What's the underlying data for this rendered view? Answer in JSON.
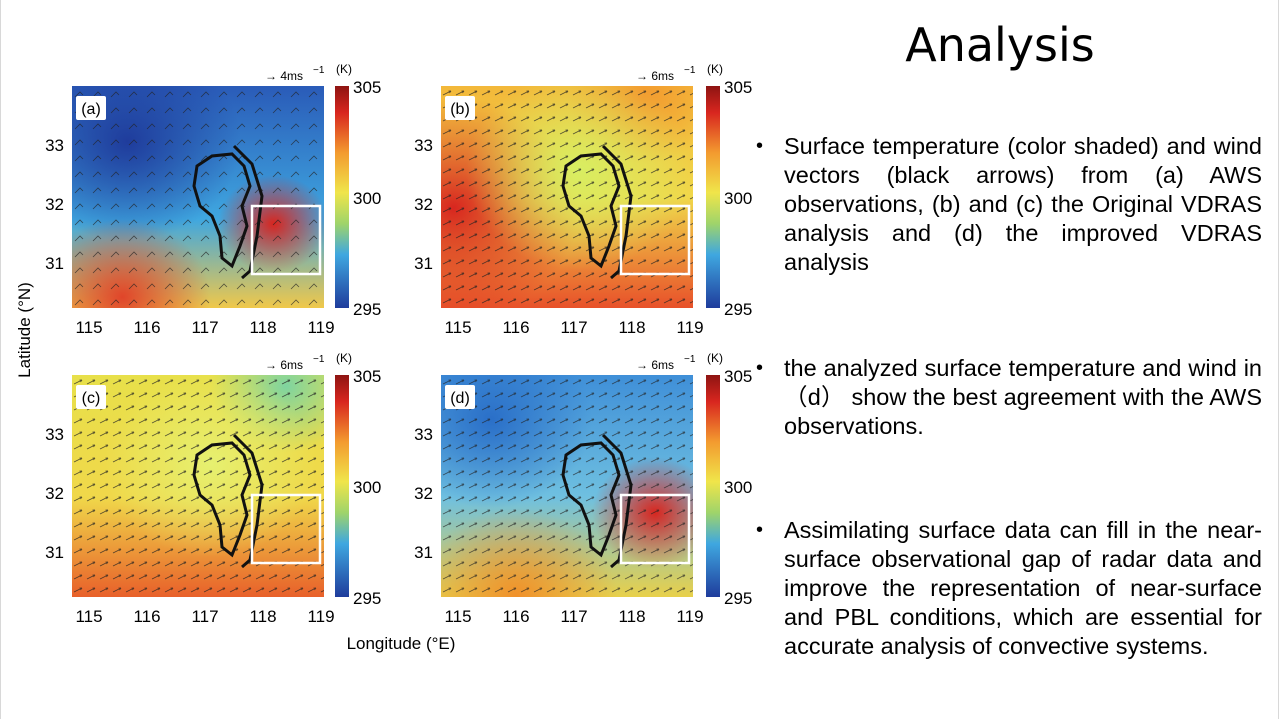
{
  "slide": {
    "title": "Analysis",
    "bullets": [
      "Surface temperature (color shaded) and wind vectors (black arrows) from (a) AWS observations, (b) and (c) the Original VDRAS analysis and (d) the improved VDRAS analysis",
      "the analyzed surface temperature and wind in （d） show the best agreement with the AWS observations.",
      "Assimilating surface data can fill in the near-surface observational gap of radar data and improve the representation of near-surface and PBL conditions, which are essential for accurate analysis of convective systems."
    ]
  },
  "figure": {
    "y_axis_label": "Latitude (°N)",
    "x_axis_label": "Longitude (°E)",
    "colorbar_unit": "(K)",
    "colorbar_ticks": [
      "305",
      "300",
      "295"
    ],
    "lon_ticks": [
      "115",
      "116",
      "117",
      "118",
      "119"
    ],
    "lat_ticks": [
      "33",
      "32",
      "31"
    ],
    "colors": {
      "cold": "#1f3c9c",
      "cool": "#3fa7e0",
      "mild": "#f0e54a",
      "warm": "#f39a2f",
      "hot": "#d8261f",
      "max": "#8e1412"
    },
    "panels": [
      {
        "label": "(a)",
        "vector_scale": "→ 4ms",
        "vector_exp": "−1"
      },
      {
        "label": "(b)",
        "vector_scale": "→ 6ms",
        "vector_exp": "−1"
      },
      {
        "label": "(c)",
        "vector_scale": "→ 6ms",
        "vector_exp": "−1"
      },
      {
        "label": "(d)",
        "vector_scale": "→ 6ms",
        "vector_exp": "−1"
      }
    ]
  }
}
